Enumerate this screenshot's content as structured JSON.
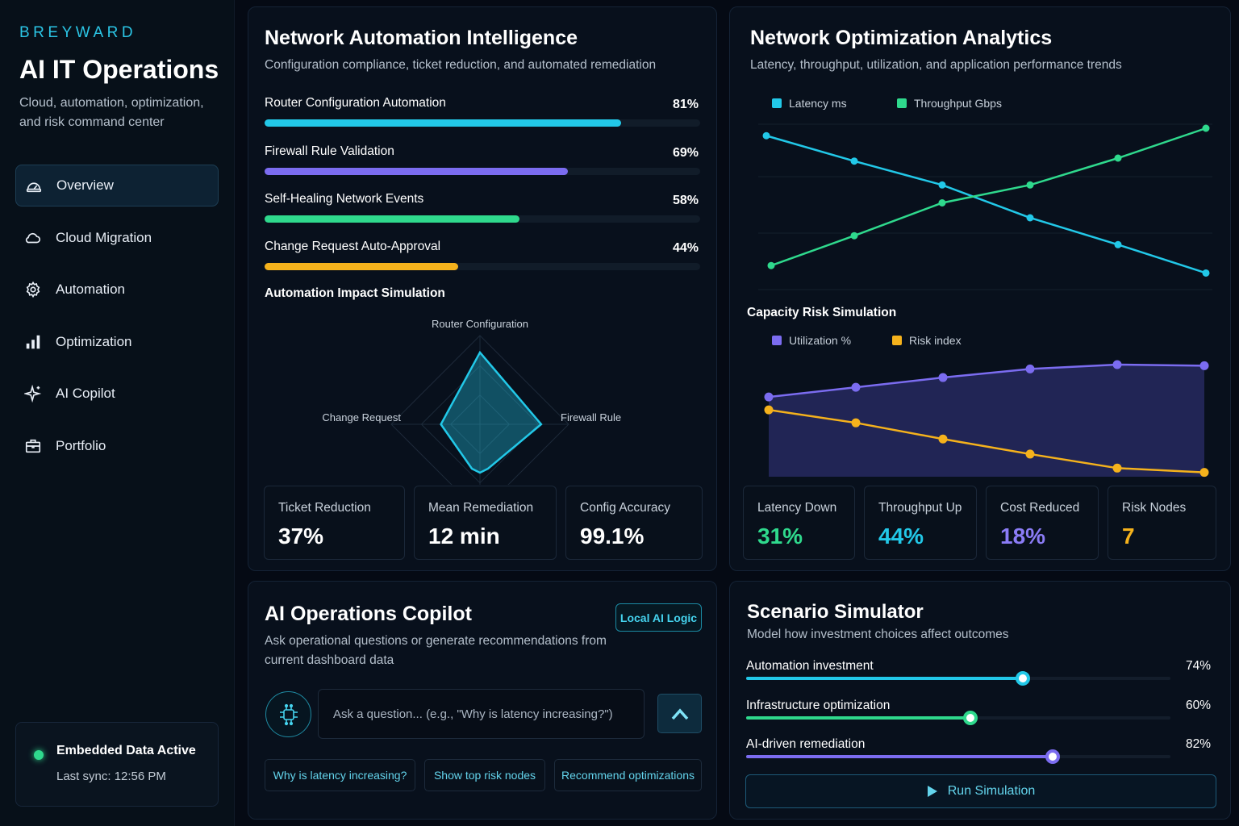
{
  "sidebar": {
    "brand": "BREYWARD",
    "title": "AI IT Operations",
    "subtitle": "Cloud, automation, optimization, and risk command center",
    "nav": [
      {
        "label": "Overview",
        "icon": "gauge-icon",
        "active": true
      },
      {
        "label": "Cloud Migration",
        "icon": "cloud-icon"
      },
      {
        "label": "Automation",
        "icon": "gear-icon"
      },
      {
        "label": "Optimization",
        "icon": "bar-chart-icon"
      },
      {
        "label": "AI Copilot",
        "icon": "sparkle-icon"
      },
      {
        "label": "Portfolio",
        "icon": "briefcase-icon"
      }
    ],
    "status": {
      "title": "Embedded Data Active",
      "sync": "Last sync: 12:56 PM",
      "color": "#2fd98d"
    }
  },
  "automation": {
    "title": "Network Automation Intelligence",
    "subtitle": "Configuration compliance, ticket reduction, and automated remediation",
    "metrics": [
      {
        "label": "Router Configuration Automation",
        "value": "81%",
        "pct": 81,
        "color": "#22c8e8"
      },
      {
        "label": "Firewall Rule Validation",
        "value": "69%",
        "pct": 69,
        "color": "#7b6cf0"
      },
      {
        "label": "Self-Healing Network Events",
        "value": "58%",
        "pct": 58,
        "color": "#2fd98d"
      },
      {
        "label": "Change Request Auto-Approval",
        "value": "44%",
        "pct": 44,
        "color": "#f5b21c"
      }
    ],
    "radar_title": "Automation Impact Simulation",
    "radar_axes": {
      "top": "Router Configuration",
      "right": "Firewall Rule",
      "left": "Change Request"
    },
    "kpis": [
      {
        "label": "Ticket Reduction",
        "value": "37%"
      },
      {
        "label": "Mean Remediation",
        "value": "12 min"
      },
      {
        "label": "Config Accuracy",
        "value": "99.1%"
      }
    ]
  },
  "optimization": {
    "title": "Network Optimization Analytics",
    "subtitle": "Latency, throughput, utilization, and application performance trends",
    "kpis": [
      {
        "label": "Latency Down",
        "value": "31%",
        "color": "#2fd98d"
      },
      {
        "label": "Throughput Up",
        "value": "44%",
        "color": "#22c8e8"
      },
      {
        "label": "Cost Reduced",
        "value": "18%",
        "color": "#8b7cf6"
      },
      {
        "label": "Risk Nodes",
        "value": "7",
        "color": "#f5b21c"
      }
    ]
  },
  "chart_data": [
    {
      "type": "line",
      "series": [
        {
          "name": "Latency ms",
          "color": "#22c8e8",
          "values": [
            95,
            78,
            62,
            40,
            22,
            3
          ]
        },
        {
          "name": "Throughput Gbps",
          "color": "#2fd98d",
          "values": [
            8,
            28,
            50,
            62,
            80,
            100
          ]
        }
      ],
      "ylim": [
        0,
        100
      ],
      "grid": true,
      "legend": "top-left"
    },
    {
      "type": "area",
      "title": "Capacity Risk Simulation",
      "series": [
        {
          "name": "Utilization %",
          "color": "#7b6cf0",
          "values": [
            44,
            53,
            62,
            70,
            74,
            73
          ]
        },
        {
          "name": "Risk index",
          "color": "#f5b21c",
          "values": [
            32,
            20,
            5,
            -9,
            -22,
            -26
          ]
        }
      ],
      "ylim": [
        -30,
        80
      ],
      "legend": "top-left"
    },
    {
      "type": "radar",
      "title": "Automation Impact Simulation",
      "axes": [
        "Router Configuration",
        "Firewall Rule",
        "Change Request"
      ],
      "values": [
        81,
        69,
        44
      ],
      "max": 100
    }
  ],
  "copilot": {
    "title": "AI Operations Copilot",
    "badge": "Local AI Logic",
    "subtitle_line1": "Ask operational questions or generate recommendations from",
    "subtitle_line2": "current dashboard data",
    "placeholder": "Ask a question... (e.g., \"Why is latency increasing?\")",
    "chips": [
      "Why is latency increasing?",
      "Show top risk nodes",
      "Recommend optimizations"
    ]
  },
  "scenario": {
    "title": "Scenario Simulator",
    "subtitle": "Model how investment choices affect outcomes",
    "sliders": [
      {
        "label": "Automation investment",
        "value": "74%",
        "pct": 74,
        "color": "#22c8e8"
      },
      {
        "label": "Infrastructure optimization",
        "value": "60%",
        "pct": 60,
        "color": "#2fd98d"
      },
      {
        "label": "AI-driven remediation",
        "value": "82%",
        "pct": 82,
        "color": "#7b6cf0"
      }
    ],
    "run_label": "Run Simulation"
  }
}
